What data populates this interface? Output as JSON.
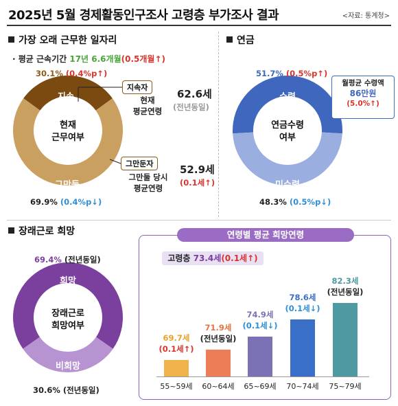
{
  "header": {
    "title": "2025년 5월 경제활동인구조사 고령층 부가조사 결과",
    "source": "<자료: 통계청>"
  },
  "sections": {
    "longest_job": "가장 오래 근무한 일자리",
    "pension": "연금",
    "future_work": "장래근로 희망"
  },
  "avg_tenure": {
    "label": "평균 근속기간",
    "value": "17년 6.6개월",
    "change": "(0.5개월↑)"
  },
  "job_donut": {
    "center": [
      "현재",
      "근무여부"
    ],
    "slices": [
      {
        "label": "지속",
        "value": 30.1,
        "pct_text": "30.1%",
        "change": "(0.4%p↑)",
        "color": "#7a4a10"
      },
      {
        "label": "그만둠",
        "value": 69.9,
        "pct_text": "69.9%",
        "change": "(0.4%p↓)",
        "color": "#caa060"
      }
    ],
    "continuing": {
      "tag": "지속자",
      "desc": [
        "현재",
        "평균연령"
      ],
      "age": "62.6세",
      "age_change": "(전년동일)"
    },
    "quit": {
      "tag": "그만둔자",
      "desc": [
        "그만둘 당시",
        "평균연령"
      ],
      "age": "52.9세",
      "age_change": "(0.1세↑)"
    }
  },
  "pension_donut": {
    "center": [
      "연금수령",
      "여부"
    ],
    "slices": [
      {
        "label": "수령",
        "value": 51.7,
        "pct_text": "51.7%",
        "change": "(0.5%p↑)",
        "color": "#3e67bd"
      },
      {
        "label": "미수령",
        "value": 48.3,
        "pct_text": "48.3%",
        "change": "(0.5%p↓)",
        "color": "#9aaee0"
      }
    ],
    "monthly": {
      "label": "월평균 수령액",
      "value": "86만원",
      "change": "(5.0%↑)"
    }
  },
  "future_donut": {
    "center": [
      "장래근로",
      "희망여부"
    ],
    "slices": [
      {
        "label": "희망",
        "value": 69.4,
        "pct_text": "69.4%",
        "change": "(전년동일)",
        "color": "#7b3f9e"
      },
      {
        "label": "비희망",
        "value": 30.6,
        "pct_text": "30.6%",
        "change": "(전년동일)",
        "color": "#b793d2"
      }
    ]
  },
  "chart_data": {
    "type": "bar",
    "title": "연령별 평균 희망연령",
    "annotation": {
      "label": "고령층",
      "value": "73.4세",
      "change": "(0.1세↑)"
    },
    "categories": [
      "55~59세",
      "60~64세",
      "65~69세",
      "70~74세",
      "75~79세"
    ],
    "values": [
      69.7,
      71.9,
      74.9,
      78.6,
      82.3
    ],
    "value_labels": [
      "69.7세",
      "71.9세",
      "74.9세",
      "78.6세",
      "82.3세"
    ],
    "change_labels": [
      "(0.1세↑)",
      "(전년동일)",
      "(0.1세↓)",
      "(0.1세↓)",
      "(전년동일)"
    ],
    "colors": [
      "#f0b24a",
      "#ec7d55",
      "#7b72b5",
      "#3a6fc7",
      "#4e9aa3"
    ],
    "label_colors": [
      "#d9342b",
      "#222222",
      "#2e8fd6",
      "#2e8fd6",
      "#222222"
    ],
    "value_colors": [
      "#e8a32e",
      "#e8743f",
      "#7b72b5",
      "#3a6fc7",
      "#4e9aa3"
    ],
    "ylim": [
      40,
      90
    ]
  }
}
